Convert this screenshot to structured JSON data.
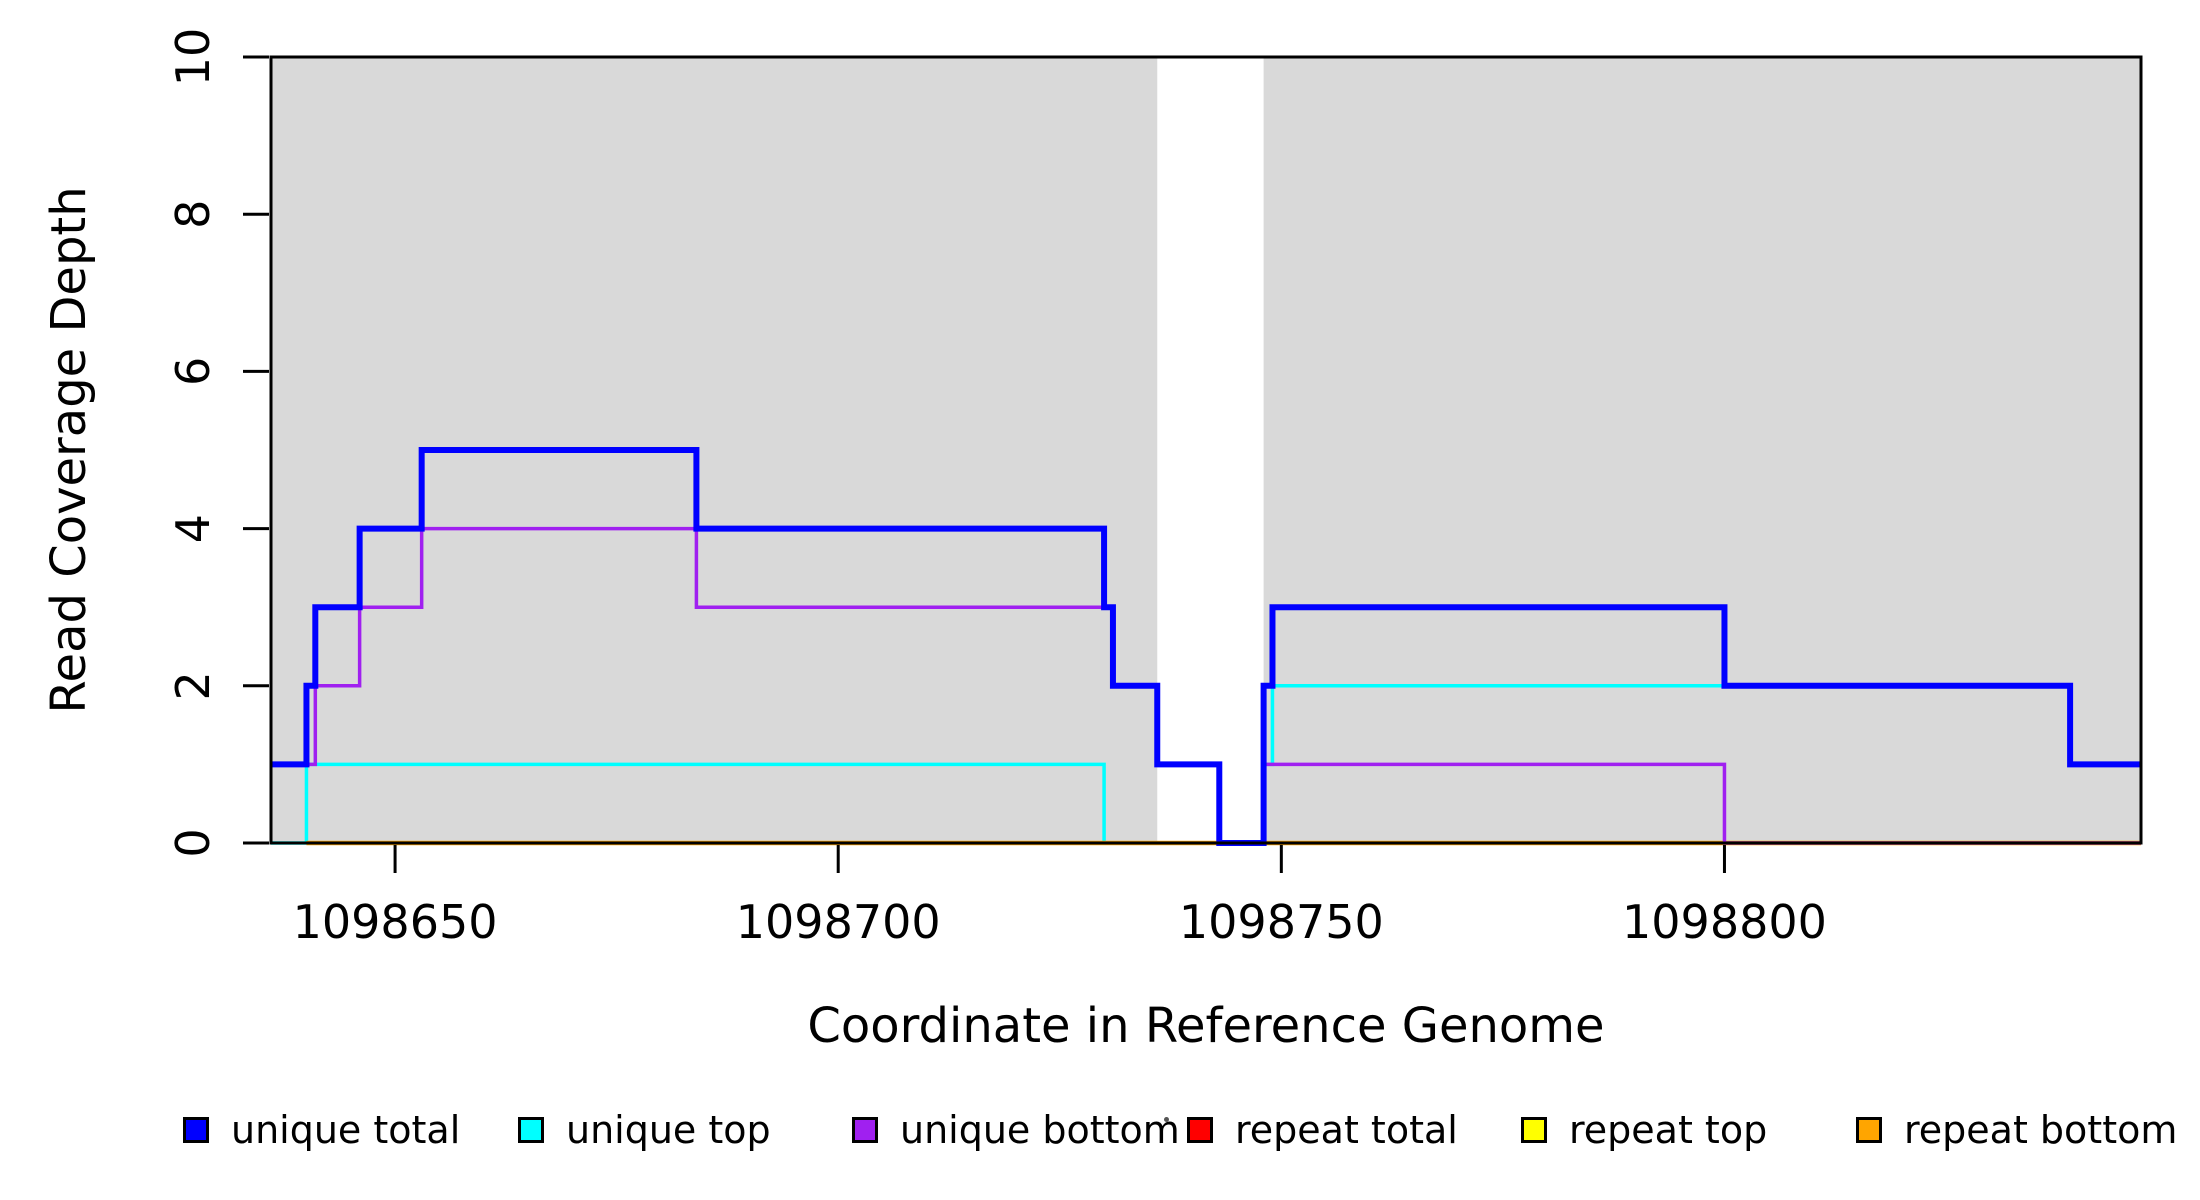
{
  "chart_data": {
    "type": "line",
    "subtype": "step",
    "title": "",
    "xlabel": "Coordinate in Reference Genome",
    "ylabel": "Read Coverage Depth",
    "xlim": [
      1098636,
      1098847
    ],
    "ylim": [
      0,
      10
    ],
    "grid": false,
    "x_ticks": [
      1098650,
      1098700,
      1098750,
      1098800
    ],
    "x_tick_labels": [
      "1098650",
      "1098700",
      "1098750",
      "1098800"
    ],
    "y_ticks": [
      0,
      2,
      4,
      6,
      8,
      10
    ],
    "y_tick_labels": [
      "0",
      "2",
      "4",
      "6",
      "8",
      "10"
    ],
    "shaded_regions": [
      {
        "x0": 1098636,
        "x1": 1098736,
        "color": "#D9D9D9"
      },
      {
        "x0": 1098748,
        "x1": 1098847,
        "color": "#D9D9D9"
      }
    ],
    "series": [
      {
        "name": "unique top",
        "color": "#00FFFF",
        "width": 3.5,
        "steps": [
          [
            1098636,
            0
          ],
          [
            1098640,
            1
          ],
          [
            1098730,
            0
          ],
          [
            1098748,
            1
          ],
          [
            1098749,
            2
          ],
          [
            1098839,
            1
          ],
          [
            1098847,
            1
          ]
        ]
      },
      {
        "name": "repeat total",
        "color": "#FF0000",
        "width": 3,
        "steps": [
          [
            1098640,
            0
          ],
          [
            1098847,
            0
          ]
        ]
      },
      {
        "name": "repeat top",
        "color": "#FFFF00",
        "width": 3,
        "steps": [
          [
            1098640,
            0
          ],
          [
            1098847,
            0
          ]
        ]
      },
      {
        "name": "repeat bottom",
        "color": "#FFA500",
        "width": 4.5,
        "steps": [
          [
            1098640,
            0
          ],
          [
            1098847,
            0
          ]
        ]
      },
      {
        "name": "unique bottom",
        "color": "#A020F0",
        "width": 3.5,
        "steps": [
          [
            1098636,
            1
          ],
          [
            1098641,
            2
          ],
          [
            1098646,
            3
          ],
          [
            1098653,
            4
          ],
          [
            1098684,
            3
          ],
          [
            1098731,
            2
          ],
          [
            1098736,
            1
          ],
          [
            1098743,
            0
          ],
          [
            1098748,
            1
          ],
          [
            1098800,
            0
          ],
          [
            1098847,
            0
          ]
        ]
      },
      {
        "name": "unique total",
        "color": "#0000FF",
        "width": 6,
        "steps": [
          [
            1098636,
            1
          ],
          [
            1098640,
            2
          ],
          [
            1098641,
            3
          ],
          [
            1098646,
            4
          ],
          [
            1098653,
            5
          ],
          [
            1098684,
            4
          ],
          [
            1098730,
            3
          ],
          [
            1098731,
            2
          ],
          [
            1098736,
            1
          ],
          [
            1098743,
            0
          ],
          [
            1098748,
            2
          ],
          [
            1098749,
            3
          ],
          [
            1098800,
            2
          ],
          [
            1098839,
            1
          ],
          [
            1098847,
            1
          ]
        ]
      }
    ],
    "legend": {
      "position": "bottom",
      "items": [
        {
          "label": "unique total",
          "color": "#0000FF"
        },
        {
          "label": "unique top",
          "color": "#00FFFF"
        },
        {
          "label": "unique bottom",
          "color": "#A020F0"
        },
        {
          "label": "repeat total",
          "color": "#FF0000"
        },
        {
          "label": "repeat top",
          "color": "#FFFF00"
        },
        {
          "label": "repeat bottom",
          "color": "#FFA500"
        }
      ]
    },
    "axis_color": "#000000"
  }
}
